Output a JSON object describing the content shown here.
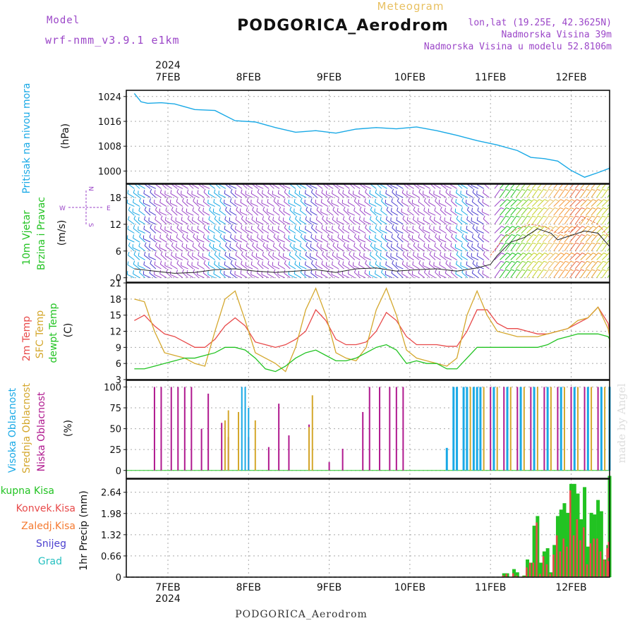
{
  "header": {
    "model_label": "Model",
    "model_name": "wrf-nmm_v3.9.1 e1km",
    "kind": "Meteogram",
    "station": "PODGORICA_Aerodrom",
    "lonlat": "lon,lat (19.25E, 42.3625N)",
    "elevation": "Nadmorska Visina 39m",
    "model_elevation": "Nadmorska Visina u modelu 52.8106m",
    "footer_station": "PODGORICA_Aerodrom",
    "watermark": "made by Angel"
  },
  "colors": {
    "pressure": "#19a9e6",
    "wind_label": "#22c322",
    "temp2m": "#e84a4a",
    "sfctemp": "#d4a72c",
    "dewpt": "#22c322",
    "cloud_high": "#19a9e6",
    "cloud_mid": "#d4a72c",
    "cloud_low": "#b0198f",
    "snow": "#4b3fcf",
    "hail": "#26c0c0",
    "conv": "#e84a4a",
    "frz": "#f57a30",
    "model_text": "#9b46c8",
    "kind_text": "#e8c060"
  },
  "chart_data": [
    {
      "type": "line",
      "name": "pressure",
      "ylabel": "Pritisak na nivou mora",
      "unit": "(hPa)",
      "ylim": [
        996,
        1026
      ],
      "yticks": [
        "1000",
        "1008",
        "1016",
        "1024"
      ],
      "year_label": "2024",
      "day_labels": [
        "7FEB",
        "8FEB",
        "9FEB",
        "10FEB",
        "11FEB",
        "12FEB"
      ],
      "x_hours": [
        0,
        2,
        4,
        8,
        12,
        18,
        24,
        30,
        36,
        42,
        48,
        54,
        60,
        66,
        72,
        78,
        84,
        90,
        96,
        102,
        108,
        114,
        118,
        122,
        126,
        130,
        134,
        138,
        142,
        148,
        154,
        160,
        166,
        172
      ],
      "values": [
        1025.0,
        1022.3,
        1021.8,
        1022.0,
        1021.6,
        1019.8,
        1019.5,
        1016.2,
        1015.8,
        1014.0,
        1012.5,
        1013.0,
        1012.2,
        1013.5,
        1014.0,
        1013.6,
        1014.2,
        1013.0,
        1011.5,
        1009.8,
        1008.4,
        1006.6,
        1004.4,
        1004.0,
        1003.2,
        1000.2,
        998.0,
        999.5,
        1000.9,
        1000.0,
        1000.8,
        1000.9,
        1001.2,
        1001.4
      ]
    },
    {
      "type": "wind-barbs",
      "name": "wind",
      "ylabel": [
        "10m Vjetar",
        "Brzina i Pravac"
      ],
      "unit": "(m/s)",
      "ylim": [
        -1,
        21
      ],
      "yticks": [
        "0",
        "6",
        "12",
        "18"
      ],
      "compass": [
        "N",
        "W",
        "E",
        "S"
      ],
      "speed_hours": [
        0,
        6,
        12,
        18,
        24,
        30,
        36,
        42,
        48,
        54,
        60,
        66,
        72,
        78,
        84,
        90,
        96,
        102,
        106,
        108,
        112,
        116,
        120,
        124,
        126,
        130,
        134,
        138,
        142,
        146,
        150,
        154,
        160,
        166,
        172
      ],
      "speed_values": [
        2.0,
        1.5,
        1.0,
        1.2,
        1.8,
        2.0,
        1.5,
        1.2,
        1.5,
        1.8,
        1.2,
        2.0,
        2.2,
        1.5,
        1.8,
        2.0,
        1.5,
        2.2,
        3.0,
        5.0,
        8.0,
        9.0,
        11.0,
        10.0,
        8.5,
        9.5,
        10.5,
        10.0,
        7.0,
        5.5,
        3.5,
        2.5,
        1.5,
        1.8,
        2.2
      ],
      "gust_hours": [
        106,
        110,
        114,
        118,
        122,
        126,
        130,
        134,
        138,
        142,
        146,
        150
      ],
      "gust_values": [
        5.0,
        9.0,
        11.0,
        12.0,
        11.5,
        10.0,
        10.5,
        13.5,
        12.0,
        9.0,
        6.0,
        3.5
      ]
    },
    {
      "type": "line",
      "name": "temperature",
      "ylabel": [
        "2m Temp",
        "SFC Temp",
        "dewpt Temp"
      ],
      "unit": "(C)",
      "ylim": [
        3,
        21
      ],
      "yticks": [
        "3",
        "6",
        "9",
        "12",
        "15",
        "18",
        "21"
      ],
      "x_hours": [
        0,
        3,
        6,
        9,
        12,
        15,
        18,
        21,
        24,
        27,
        30,
        33,
        36,
        39,
        42,
        45,
        48,
        51,
        54,
        57,
        60,
        63,
        66,
        69,
        72,
        75,
        78,
        81,
        84,
        87,
        90,
        93,
        96,
        99,
        102,
        105,
        108,
        111,
        114,
        117,
        120,
        123,
        126,
        129,
        132,
        135,
        138,
        141,
        144,
        147,
        150,
        153,
        156,
        159,
        162,
        165,
        168,
        171
      ],
      "series": [
        {
          "name": "2m Temp",
          "color": "#e84a4a",
          "values": [
            14,
            15,
            13,
            11.5,
            11,
            10,
            9,
            9,
            10.5,
            13,
            14.5,
            13,
            10,
            9.5,
            9,
            9.5,
            10.5,
            12,
            16,
            14,
            10.5,
            9.5,
            9.5,
            10,
            12,
            15.5,
            14,
            11,
            9.5,
            9.5,
            9.5,
            9.2,
            9.2,
            12,
            16,
            16,
            13.5,
            12.5,
            12.5,
            12,
            11.5,
            11.5,
            12,
            12.5,
            13.5,
            14.5,
            16.5,
            13.5,
            12,
            11,
            10.5,
            10.5,
            10.5,
            11,
            10.5,
            9,
            12.5,
            14
          ]
        },
        {
          "name": "SFC Temp",
          "color": "#d4a72c",
          "values": [
            18,
            17.5,
            12,
            8,
            7.5,
            7,
            6,
            5.5,
            12,
            18,
            19.5,
            14,
            8,
            7,
            6,
            4.5,
            9,
            16,
            20,
            15,
            8,
            7,
            6.5,
            9,
            16,
            20,
            15,
            8.5,
            7,
            6.5,
            6,
            5.5,
            7,
            15,
            19.5,
            15,
            12,
            11.5,
            11,
            11,
            11,
            11.5,
            12,
            12.5,
            14,
            14.5,
            16.5,
            12.5,
            11,
            10.5,
            10,
            10,
            10,
            10.5,
            10,
            8.5,
            14,
            18
          ]
        },
        {
          "name": "dewpt Temp",
          "color": "#22c322",
          "values": [
            5,
            5,
            5.5,
            6,
            6.5,
            7,
            7,
            7.5,
            8,
            9,
            9,
            8.5,
            7,
            5,
            4.5,
            5.5,
            7,
            8,
            8.5,
            7.5,
            6.5,
            6.5,
            7,
            8,
            9,
            9.5,
            8.5,
            6,
            6.5,
            6,
            6,
            5,
            5,
            7,
            9,
            9,
            9,
            9,
            9,
            9,
            9,
            9.5,
            10.5,
            11,
            11.5,
            11.5,
            11.5,
            11,
            10.5,
            10,
            10,
            10,
            10,
            10.5,
            10,
            9,
            9.5,
            9
          ]
        }
      ]
    },
    {
      "type": "bar",
      "name": "clouds",
      "ylabel": [
        "Visoka Oblacnost",
        "Srednja Oblacnost",
        "Niska Oblacnost"
      ],
      "unit": "(%)",
      "ylim": [
        0,
        100
      ],
      "yticks": [
        "0",
        "25",
        "50",
        "75",
        "100"
      ],
      "series": [
        {
          "name": "Niska Oblacnost",
          "color": "#b0198f",
          "bars": [
            [
              6,
              100
            ],
            [
              8,
              100
            ],
            [
              11,
              100
            ],
            [
              13,
              100
            ],
            [
              15,
              100
            ],
            [
              17,
              100
            ],
            [
              20,
              50
            ],
            [
              22,
              92
            ],
            [
              26,
              57
            ],
            [
              28,
              40
            ],
            [
              34,
              40
            ],
            [
              40,
              28
            ],
            [
              43,
              80
            ],
            [
              46,
              42
            ],
            [
              52,
              55
            ],
            [
              58,
              10
            ],
            [
              62,
              26
            ],
            [
              68,
              70
            ],
            [
              70,
              100
            ],
            [
              73,
              100
            ],
            [
              76,
              100
            ],
            [
              78,
              100
            ],
            [
              80,
              100
            ],
            [
              106,
              100
            ],
            [
              110,
              100
            ],
            [
              114,
              100
            ],
            [
              118,
              100
            ],
            [
              122,
              100
            ],
            [
              126,
              100
            ],
            [
              130,
              100
            ],
            [
              134,
              100
            ],
            [
              138,
              100
            ],
            [
              142,
              100
            ],
            [
              146,
              100
            ],
            [
              150,
              100
            ],
            [
              154,
              100
            ],
            [
              158,
              100
            ],
            [
              162,
              100
            ],
            [
              166,
              100
            ],
            [
              170,
              100
            ]
          ]
        },
        {
          "name": "Srednja Oblacnost",
          "color": "#d4a72c",
          "bars": [
            [
              27,
              60
            ],
            [
              28,
              72
            ],
            [
              31,
              70
            ],
            [
              36,
              60
            ],
            [
              52,
              52
            ],
            [
              53,
              90
            ],
            [
              96,
              100
            ],
            [
              100,
              100
            ],
            [
              104,
              100
            ],
            [
              108,
              100
            ],
            [
              112,
              100
            ],
            [
              116,
              100
            ],
            [
              120,
              100
            ],
            [
              124,
              100
            ],
            [
              128,
              100
            ],
            [
              132,
              100
            ],
            [
              136,
              100
            ],
            [
              140,
              100
            ],
            [
              144,
              100
            ],
            [
              148,
              100
            ],
            [
              152,
              100
            ],
            [
              156,
              100
            ],
            [
              160,
              100
            ],
            [
              164,
              100
            ],
            [
              168,
              100
            ],
            [
              172,
              100
            ]
          ]
        },
        {
          "name": "Visoka Oblacnost",
          "color": "#19a9e6",
          "bars": [
            [
              32,
              100
            ],
            [
              33,
              100
            ],
            [
              34,
              75
            ],
            [
              93,
              27
            ],
            [
              95,
              100
            ],
            [
              96,
              100
            ],
            [
              98,
              100
            ],
            [
              99,
              100
            ],
            [
              101,
              100
            ],
            [
              102,
              100
            ],
            [
              103,
              100
            ],
            [
              107,
              100
            ],
            [
              111,
              100
            ],
            [
              115,
              100
            ],
            [
              119,
              100
            ],
            [
              123,
              100
            ],
            [
              127,
              100
            ],
            [
              131,
              100
            ],
            [
              135,
              100
            ],
            [
              139,
              100
            ],
            [
              143,
              100
            ],
            [
              147,
              100
            ],
            [
              151,
              100
            ],
            [
              155,
              100
            ],
            [
              159,
              100
            ],
            [
              163,
              100
            ],
            [
              167,
              100
            ],
            [
              171,
              100
            ]
          ]
        }
      ]
    },
    {
      "type": "bar",
      "name": "precipitation",
      "ylabel": [
        "Ukupna Kisa",
        "Konvek.Kisa",
        "Zaledj.Kisa",
        "Snijeg",
        "Grad"
      ],
      "unit": "1hr Precip (mm)",
      "ylim": [
        0,
        3.05
      ],
      "yticks": [
        "0",
        "0.66",
        "1.32",
        "1.98",
        "2.64"
      ],
      "x_hours": [
        110,
        111,
        113,
        114,
        116,
        117,
        118,
        119,
        120,
        121,
        122,
        123,
        124,
        125,
        126,
        127,
        128,
        129,
        130,
        131,
        132,
        133,
        134,
        135,
        136,
        137,
        138,
        139,
        140,
        141,
        142,
        143,
        144,
        145,
        146,
        147,
        148,
        149,
        150,
        151,
        152,
        153,
        154,
        155,
        156,
        158,
        162,
        169,
        170,
        171,
        172
      ],
      "series": [
        {
          "name": "Ukupna Kisa",
          "color": "#22c322",
          "values": [
            0.12,
            0.12,
            0.25,
            0.15,
            0.05,
            0.55,
            0.45,
            1.6,
            1.9,
            0.45,
            0.8,
            0.9,
            0.15,
            1.0,
            1.9,
            2.1,
            2.3,
            2.0,
            2.9,
            2.9,
            2.6,
            1.8,
            2.8,
            0.95,
            2.0,
            1.95,
            2.4,
            2.05,
            0.55,
            1.0,
            1.7,
            0.4,
            0.6,
            2.2,
            2.4,
            0.95,
            3.15,
            0.6,
            2.3,
            0.2,
            0.4,
            1.6,
            0.1,
            1.8,
            1.9,
            0.05,
            0.15,
            0.1,
            0.2,
            0.15,
            0.6
          ]
        },
        {
          "name": "Konvek.Kisa",
          "color": "#e84a4a",
          "values": [
            0.05,
            0.1,
            0.12,
            0.05,
            0.03,
            0.3,
            0.45,
            0.45,
            1.7,
            0.1,
            0.65,
            0.4,
            0.1,
            0.7,
            1.3,
            0.8,
            1.2,
            0.95,
            2.7,
            1.3,
            1.8,
            1.15,
            1.55,
            0.4,
            1.05,
            1.2,
            1.2,
            0.8,
            0.55,
            0.9,
            0.6,
            0.35,
            0.55,
            0.9,
            1.8,
            0.75,
            1.5,
            0.55,
            1.2,
            0.15,
            0.3,
            0.9,
            0.08,
            0.9,
            1.1,
            0.05,
            0.1,
            0.08,
            0.15,
            0.1,
            0.5
          ]
        }
      ]
    }
  ]
}
